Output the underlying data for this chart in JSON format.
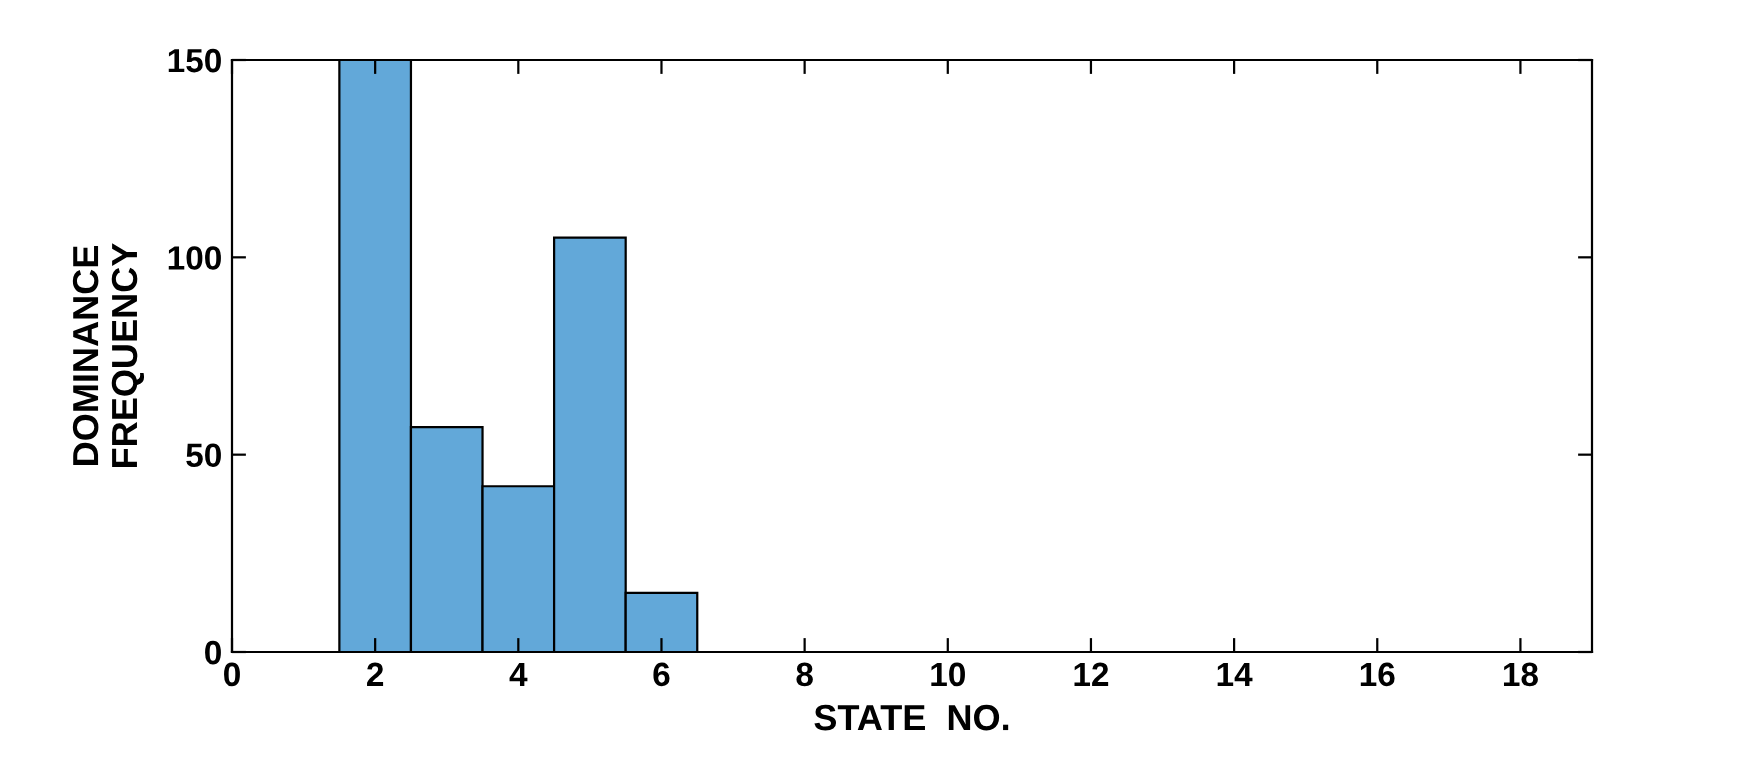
{
  "chart_data": {
    "type": "histogram",
    "xlabel": "STATE  NO.",
    "ylabel": "DOMINANCE\nFREQUENCY",
    "bins": [
      1.5,
      2.5,
      3.5,
      4.5,
      5.5,
      6.5
    ],
    "values": [
      150,
      57,
      42,
      105,
      15
    ],
    "color": "#62a8d9",
    "xlim": [
      0,
      19
    ],
    "xticks": [
      0,
      2,
      4,
      6,
      8,
      10,
      12,
      14,
      16,
      18
    ],
    "ylim": [
      0,
      150
    ],
    "yticks": [
      0,
      50,
      100,
      150
    ],
    "grid": false
  }
}
